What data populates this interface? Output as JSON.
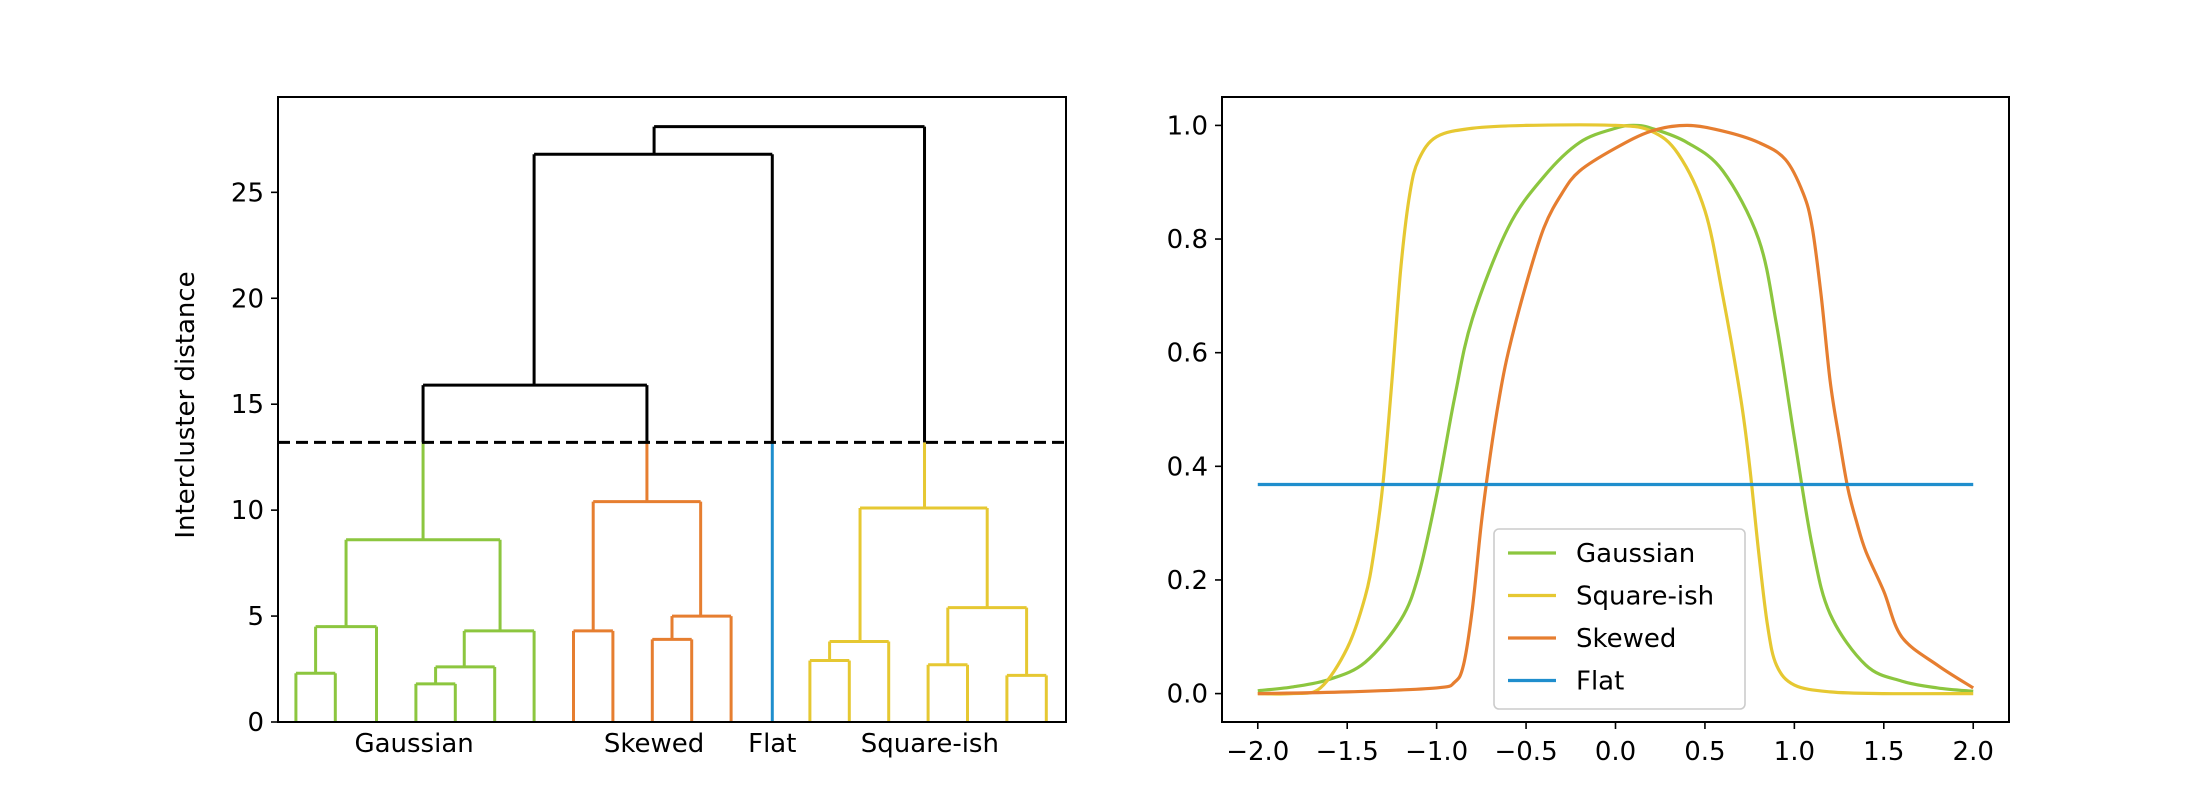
{
  "chart_data": [
    {
      "type": "dendrogram",
      "ylabel": "Intercluster distance",
      "xlabel": "",
      "ylim": [
        0,
        29.5
      ],
      "yticks": [
        0,
        5,
        10,
        15,
        20,
        25
      ],
      "xlim": [
        0,
        22
      ],
      "cut_height": 13.2,
      "leaf_group_labels": [
        {
          "label": "Gaussian",
          "x": 3.8
        },
        {
          "label": "Skewed",
          "x": 10.5
        },
        {
          "label": "Flat",
          "x": 13.8
        },
        {
          "label": "Square-ish",
          "x": 18.2
        }
      ],
      "colors": {
        "Gaussian": "#8cc63f",
        "Skewed": "#e67e30",
        "Flat": "#1f8ecd",
        "Square-ish": "#e6c832",
        "above_cut": "#000000"
      },
      "links": [
        {
          "x": [
            0.5,
            1.6
          ],
          "bottom": [
            0,
            0
          ],
          "h": 2.3,
          "color": "Gaussian"
        },
        {
          "x": [
            1.05,
            2.75
          ],
          "bottom": [
            2.3,
            0
          ],
          "h": 4.5,
          "color": "Gaussian"
        },
        {
          "x": [
            3.85,
            4.95
          ],
          "bottom": [
            0,
            0
          ],
          "h": 1.8,
          "color": "Gaussian"
        },
        {
          "x": [
            4.4,
            6.05
          ],
          "bottom": [
            1.8,
            0
          ],
          "h": 2.6,
          "color": "Gaussian"
        },
        {
          "x": [
            5.2,
            7.15
          ],
          "bottom": [
            2.6,
            0
          ],
          "h": 4.3,
          "color": "Gaussian"
        },
        {
          "x": [
            1.9,
            6.2
          ],
          "bottom": [
            4.5,
            4.3
          ],
          "h": 8.6,
          "color": "Gaussian"
        },
        {
          "x": [
            8.25,
            9.35
          ],
          "bottom": [
            0,
            0
          ],
          "h": 4.3,
          "color": "Skewed"
        },
        {
          "x": [
            10.45,
            11.55
          ],
          "bottom": [
            0,
            0
          ],
          "h": 3.9,
          "color": "Skewed"
        },
        {
          "x": [
            11.0,
            12.65
          ],
          "bottom": [
            3.9,
            0
          ],
          "h": 5.0,
          "color": "Skewed"
        },
        {
          "x": [
            8.8,
            11.8
          ],
          "bottom": [
            4.3,
            5.0
          ],
          "h": 10.4,
          "color": "Skewed"
        },
        {
          "x": [
            14.85,
            15.95
          ],
          "bottom": [
            0,
            0
          ],
          "h": 2.9,
          "color": "Square-ish"
        },
        {
          "x": [
            15.4,
            17.05
          ],
          "bottom": [
            2.9,
            0
          ],
          "h": 3.8,
          "color": "Square-ish"
        },
        {
          "x": [
            18.15,
            19.25
          ],
          "bottom": [
            0,
            0
          ],
          "h": 2.7,
          "color": "Square-ish"
        },
        {
          "x": [
            20.35,
            21.45
          ],
          "bottom": [
            0,
            0
          ],
          "h": 2.2,
          "color": "Square-ish"
        },
        {
          "x": [
            18.7,
            20.9
          ],
          "bottom": [
            2.7,
            2.2
          ],
          "h": 5.4,
          "color": "Square-ish"
        },
        {
          "x": [
            16.25,
            19.8
          ],
          "bottom": [
            3.8,
            5.4
          ],
          "h": 10.1,
          "color": "Square-ish"
        },
        {
          "x": [
            4.05,
            10.3
          ],
          "bottom": [
            8.6,
            10.4
          ],
          "h": 15.9,
          "color": "above_cut"
        },
        {
          "x": [
            7.15,
            13.8
          ],
          "bottom": [
            15.9,
            0
          ],
          "h": 26.8,
          "color": "above_cut"
        },
        {
          "x": [
            10.5,
            18.05
          ],
          "bottom": [
            26.8,
            10.1
          ],
          "h": 28.1,
          "color": "above_cut"
        }
      ]
    },
    {
      "type": "line",
      "xlabel": "",
      "ylabel": "",
      "xlim": [
        -2.2,
        2.2
      ],
      "ylim": [
        -0.05,
        1.05
      ],
      "xticks": [
        "−2.0",
        "−1.5",
        "−1.0",
        "−0.5",
        "0.0",
        "0.5",
        "1.0",
        "1.5",
        "2.0"
      ],
      "xtick_values": [
        -2.0,
        -1.5,
        -1.0,
        -0.5,
        0.0,
        0.5,
        1.0,
        1.5,
        2.0
      ],
      "yticks": [
        "0.0",
        "0.2",
        "0.4",
        "0.6",
        "0.8",
        "1.0"
      ],
      "ytick_values": [
        0.0,
        0.2,
        0.4,
        0.6,
        0.8,
        1.0
      ],
      "legend_placement": "lower-center",
      "series": [
        {
          "name": "Gaussian",
          "color": "#8cc63f",
          "x": [
            -2.0,
            -1.8,
            -1.6,
            -1.4,
            -1.2,
            -1.1,
            -1.0,
            -0.9,
            -0.8,
            -0.6,
            -0.4,
            -0.2,
            0.0,
            0.1,
            0.2,
            0.4,
            0.6,
            0.8,
            0.9,
            1.0,
            1.1,
            1.2,
            1.4,
            1.6,
            1.8,
            2.0
          ],
          "y": [
            0.005,
            0.012,
            0.025,
            0.055,
            0.13,
            0.21,
            0.35,
            0.52,
            0.66,
            0.82,
            0.91,
            0.97,
            0.995,
            1.0,
            0.995,
            0.97,
            0.92,
            0.8,
            0.65,
            0.45,
            0.26,
            0.14,
            0.05,
            0.022,
            0.01,
            0.004
          ]
        },
        {
          "name": "Square-ish",
          "color": "#e6c832",
          "x": [
            -2.0,
            -1.8,
            -1.65,
            -1.5,
            -1.4,
            -1.35,
            -1.3,
            -1.25,
            -1.2,
            -1.15,
            -1.1,
            -1.0,
            -0.8,
            -0.5,
            0.0,
            0.2,
            0.35,
            0.5,
            0.6,
            0.7,
            0.75,
            0.8,
            0.85,
            0.9,
            1.0,
            1.2,
            1.5,
            2.0
          ],
          "y": [
            0.0,
            0.0,
            0.01,
            0.08,
            0.17,
            0.25,
            0.37,
            0.55,
            0.75,
            0.88,
            0.94,
            0.98,
            0.995,
            1.0,
            1.0,
            0.99,
            0.95,
            0.85,
            0.7,
            0.52,
            0.4,
            0.25,
            0.12,
            0.05,
            0.015,
            0.003,
            0.0,
            0.0
          ]
        },
        {
          "name": "Skewed",
          "color": "#e67e30",
          "x": [
            -2.0,
            -1.5,
            -1.0,
            -0.9,
            -0.85,
            -0.8,
            -0.75,
            -0.7,
            -0.65,
            -0.6,
            -0.5,
            -0.4,
            -0.3,
            -0.2,
            0.0,
            0.2,
            0.4,
            0.6,
            0.8,
            0.95,
            1.05,
            1.1,
            1.15,
            1.2,
            1.25,
            1.3,
            1.35,
            1.4,
            1.5,
            1.6,
            1.8,
            2.0
          ],
          "y": [
            0.0,
            0.003,
            0.01,
            0.02,
            0.05,
            0.15,
            0.3,
            0.42,
            0.52,
            0.6,
            0.72,
            0.82,
            0.88,
            0.92,
            0.96,
            0.99,
            1.0,
            0.99,
            0.97,
            0.94,
            0.88,
            0.82,
            0.7,
            0.55,
            0.45,
            0.36,
            0.3,
            0.25,
            0.18,
            0.1,
            0.05,
            0.01
          ]
        },
        {
          "name": "Flat",
          "color": "#1f8ecd",
          "x": [
            -2.0,
            2.0
          ],
          "y": [
            0.368,
            0.368
          ]
        }
      ]
    }
  ]
}
